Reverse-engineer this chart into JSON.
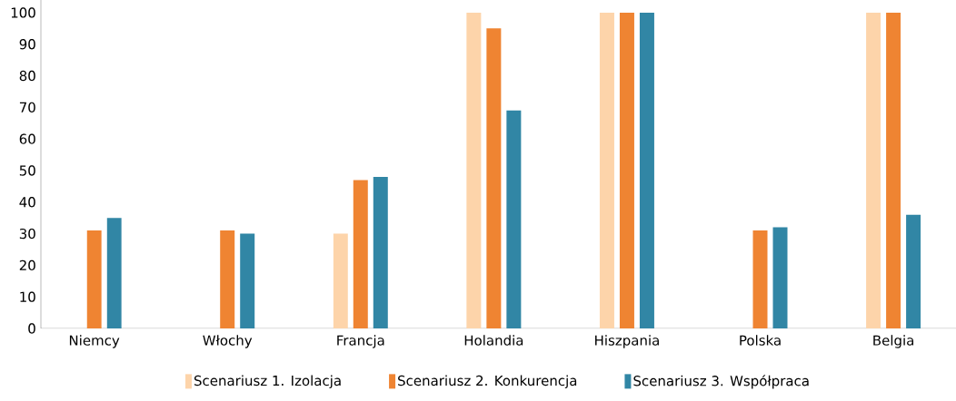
{
  "chart_data": {
    "type": "bar",
    "categories": [
      "Niemcy",
      "Włochy",
      "Francja",
      "Holandia",
      "Hiszpania",
      "Polska",
      "Belgia"
    ],
    "series": [
      {
        "name": "Scenariusz 1. Izolacja",
        "color": "#fdd4aa",
        "values": [
          null,
          null,
          30,
          100,
          100,
          null,
          100
        ]
      },
      {
        "name": "Scenariusz 2. Konkurencja",
        "color": "#ef8432",
        "values": [
          31,
          31,
          47,
          95,
          100,
          31,
          100
        ]
      },
      {
        "name": "Scenariusz 3. Współpraca",
        "color": "#3186a5",
        "values": [
          35,
          30,
          48,
          69,
          100,
          32,
          36
        ]
      }
    ],
    "ylim": [
      0,
      104
    ],
    "yticks": [
      0,
      10,
      20,
      30,
      40,
      50,
      60,
      70,
      80,
      90,
      100
    ],
    "grid": false,
    "legend": "bottom"
  }
}
